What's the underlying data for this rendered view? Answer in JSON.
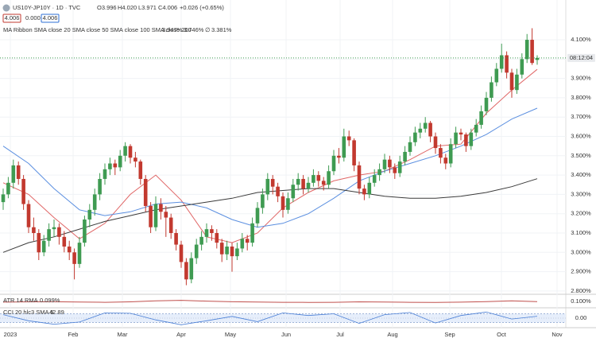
{
  "header": {
    "symbol": "US10Y-JP10Y · 1D · TVC",
    "ohlc": [
      "O3.996",
      "H4.020",
      "L3.971",
      "C4.006",
      "+0.026 (+0.65%)"
    ],
    "bid": "4.006",
    "spread": "0.000",
    "ask": "4.006",
    "countdown": "08:12:04"
  },
  "chart_data": {
    "type": "candlestick",
    "up_color": "#3f9b52",
    "down_color": "#c2392f",
    "ylim": [
      2.783,
      4.306
    ],
    "yticks": [
      {
        "value": 2.8,
        "label": "2.800%"
      },
      {
        "value": 2.9,
        "label": "2.900%"
      },
      {
        "value": 3.0,
        "label": "3.000%"
      },
      {
        "value": 3.1,
        "label": "3.100%"
      },
      {
        "value": 3.2,
        "label": "3.200%"
      },
      {
        "value": 3.3,
        "label": "3.300%"
      },
      {
        "value": 3.4,
        "label": "3.400%"
      },
      {
        "value": 3.5,
        "label": "3.500%"
      },
      {
        "value": 3.6,
        "label": "3.600%"
      },
      {
        "value": 3.7,
        "label": "3.700%"
      },
      {
        "value": 3.8,
        "label": "3.800%"
      },
      {
        "value": 3.9,
        "label": "3.900%"
      },
      {
        "value": 4.0,
        "label": "4.000%"
      },
      {
        "value": 4.1,
        "label": "4.100%"
      }
    ],
    "grid": true,
    "x_labels": [
      "2023",
      "Feb",
      "Mar",
      "Apr",
      "May",
      "Jun",
      "Jul",
      "Aug",
      "Sep",
      "Oct",
      "Nov"
    ],
    "candles": [
      [
        3.26,
        3.33,
        3.22,
        3.3
      ],
      [
        3.3,
        3.39,
        3.28,
        3.36
      ],
      [
        3.36,
        3.48,
        3.33,
        3.45
      ],
      [
        3.45,
        3.47,
        3.35,
        3.38
      ],
      [
        3.38,
        3.4,
        3.22,
        3.25
      ],
      [
        3.25,
        3.27,
        3.1,
        3.13
      ],
      [
        3.13,
        3.18,
        3.06,
        3.1
      ],
      [
        3.1,
        3.12,
        2.96,
        3.0
      ],
      [
        3.0,
        3.09,
        2.98,
        3.06
      ],
      [
        3.06,
        3.15,
        3.03,
        3.12
      ],
      [
        3.12,
        3.17,
        3.08,
        3.13
      ],
      [
        3.13,
        3.15,
        3.04,
        3.08
      ],
      [
        3.08,
        3.11,
        3.0,
        3.03
      ],
      [
        3.03,
        3.06,
        2.96,
        3.0
      ],
      [
        3.0,
        3.02,
        2.86,
        2.94
      ],
      [
        2.94,
        3.08,
        2.92,
        3.05
      ],
      [
        3.05,
        3.19,
        3.03,
        3.17
      ],
      [
        3.17,
        3.25,
        3.13,
        3.22
      ],
      [
        3.22,
        3.33,
        3.19,
        3.3
      ],
      [
        3.3,
        3.41,
        3.27,
        3.38
      ],
      [
        3.38,
        3.46,
        3.35,
        3.43
      ],
      [
        3.43,
        3.49,
        3.4,
        3.46
      ],
      [
        3.46,
        3.48,
        3.4,
        3.44
      ],
      [
        3.44,
        3.53,
        3.42,
        3.5
      ],
      [
        3.5,
        3.57,
        3.47,
        3.55
      ],
      [
        3.55,
        3.56,
        3.46,
        3.49
      ],
      [
        3.49,
        3.52,
        3.44,
        3.47
      ],
      [
        3.47,
        3.48,
        3.35,
        3.38
      ],
      [
        3.38,
        3.4,
        3.21,
        3.24
      ],
      [
        3.24,
        3.26,
        3.1,
        3.13
      ],
      [
        3.13,
        3.29,
        3.11,
        3.25
      ],
      [
        3.25,
        3.28,
        3.17,
        3.21
      ],
      [
        3.21,
        3.24,
        3.08,
        3.18
      ],
      [
        3.18,
        3.2,
        3.07,
        3.1
      ],
      [
        3.1,
        3.12,
        3.01,
        3.04
      ],
      [
        3.04,
        3.06,
        2.92,
        2.95
      ],
      [
        2.95,
        2.97,
        2.83,
        2.86
      ],
      [
        2.86,
        3.0,
        2.84,
        2.97
      ],
      [
        2.97,
        3.07,
        2.94,
        3.04
      ],
      [
        3.04,
        3.11,
        3.01,
        3.08
      ],
      [
        3.08,
        3.15,
        3.05,
        3.12
      ],
      [
        3.12,
        3.14,
        3.06,
        3.1
      ],
      [
        3.1,
        3.12,
        3.02,
        3.05
      ],
      [
        3.05,
        3.07,
        2.95,
        2.99
      ],
      [
        2.99,
        3.06,
        2.96,
        3.03
      ],
      [
        3.03,
        3.05,
        2.9,
        2.98
      ],
      [
        2.98,
        3.05,
        2.96,
        3.02
      ],
      [
        3.02,
        3.1,
        3.0,
        3.07
      ],
      [
        3.07,
        3.09,
        3.01,
        3.05
      ],
      [
        3.05,
        3.18,
        3.03,
        3.15
      ],
      [
        3.15,
        3.26,
        3.13,
        3.23
      ],
      [
        3.23,
        3.33,
        3.2,
        3.3
      ],
      [
        3.3,
        3.41,
        3.27,
        3.38
      ],
      [
        3.38,
        3.4,
        3.3,
        3.34
      ],
      [
        3.34,
        3.36,
        3.26,
        3.29
      ],
      [
        3.29,
        3.31,
        3.18,
        3.22
      ],
      [
        3.22,
        3.31,
        3.2,
        3.28
      ],
      [
        3.28,
        3.38,
        3.26,
        3.35
      ],
      [
        3.35,
        3.41,
        3.32,
        3.38
      ],
      [
        3.38,
        3.4,
        3.3,
        3.33
      ],
      [
        3.33,
        3.39,
        3.31,
        3.36
      ],
      [
        3.36,
        3.43,
        3.34,
        3.4
      ],
      [
        3.4,
        3.42,
        3.34,
        3.37
      ],
      [
        3.37,
        3.39,
        3.32,
        3.35
      ],
      [
        3.35,
        3.45,
        3.33,
        3.42
      ],
      [
        3.42,
        3.53,
        3.4,
        3.5
      ],
      [
        3.5,
        3.54,
        3.46,
        3.49
      ],
      [
        3.49,
        3.64,
        3.47,
        3.6
      ],
      [
        3.6,
        3.63,
        3.55,
        3.58
      ],
      [
        3.58,
        3.59,
        3.42,
        3.45
      ],
      [
        3.45,
        3.47,
        3.3,
        3.33
      ],
      [
        3.33,
        3.35,
        3.27,
        3.3
      ],
      [
        3.3,
        3.39,
        3.28,
        3.36
      ],
      [
        3.36,
        3.43,
        3.34,
        3.4
      ],
      [
        3.4,
        3.46,
        3.37,
        3.43
      ],
      [
        3.43,
        3.51,
        3.41,
        3.48
      ],
      [
        3.48,
        3.5,
        3.41,
        3.44
      ],
      [
        3.44,
        3.46,
        3.38,
        3.41
      ],
      [
        3.41,
        3.5,
        3.39,
        3.47
      ],
      [
        3.47,
        3.55,
        3.45,
        3.52
      ],
      [
        3.52,
        3.6,
        3.5,
        3.57
      ],
      [
        3.57,
        3.65,
        3.55,
        3.62
      ],
      [
        3.62,
        3.67,
        3.59,
        3.64
      ],
      [
        3.64,
        3.7,
        3.62,
        3.67
      ],
      [
        3.67,
        3.68,
        3.57,
        3.6
      ],
      [
        3.6,
        3.62,
        3.51,
        3.54
      ],
      [
        3.54,
        3.56,
        3.46,
        3.49
      ],
      [
        3.49,
        3.51,
        3.43,
        3.46
      ],
      [
        3.46,
        3.59,
        3.44,
        3.56
      ],
      [
        3.56,
        3.65,
        3.54,
        3.62
      ],
      [
        3.62,
        3.64,
        3.58,
        3.61
      ],
      [
        3.61,
        3.62,
        3.52,
        3.55
      ],
      [
        3.55,
        3.64,
        3.53,
        3.62
      ],
      [
        3.62,
        3.69,
        3.6,
        3.66
      ],
      [
        3.66,
        3.76,
        3.64,
        3.73
      ],
      [
        3.73,
        3.83,
        3.71,
        3.8
      ],
      [
        3.8,
        3.91,
        3.78,
        3.88
      ],
      [
        3.88,
        3.98,
        3.86,
        3.95
      ],
      [
        3.95,
        4.08,
        3.93,
        4.02
      ],
      [
        4.02,
        4.04,
        3.9,
        3.93
      ],
      [
        3.93,
        3.95,
        3.8,
        3.84
      ],
      [
        3.84,
        3.95,
        3.82,
        3.92
      ],
      [
        3.92,
        4.03,
        3.9,
        4.0
      ],
      [
        4.0,
        4.13,
        3.98,
        4.1
      ],
      [
        4.1,
        4.16,
        3.97,
        3.98
      ],
      [
        3.996,
        4.02,
        3.971,
        4.006
      ]
    ],
    "indicator": "MA Ribbon SMA close 20 SMA close 50 SMA close 100 SMA close 200",
    "series": [
      {
        "label": "3.947%",
        "color": "#e06666",
        "values": [
          3.36,
          3.3,
          3.18,
          3.07,
          3.15,
          3.3,
          3.4,
          3.27,
          3.08,
          3.05,
          3.1,
          3.23,
          3.31,
          3.37,
          3.4,
          3.42,
          3.48,
          3.55,
          3.56,
          3.72,
          3.84,
          3.947
        ]
      },
      {
        "label": "3.746%",
        "color": "#5b8fe0",
        "values": [
          3.55,
          3.46,
          3.33,
          3.22,
          3.19,
          3.21,
          3.25,
          3.26,
          3.23,
          3.17,
          3.13,
          3.15,
          3.2,
          3.28,
          3.37,
          3.42,
          3.46,
          3.5,
          3.55,
          3.61,
          3.69,
          3.746
        ]
      },
      {
        "label": "∅",
        "color": "#555555"
      },
      {
        "label": "3.381%",
        "color": "#3a3a3a",
        "values": [
          3.0,
          3.05,
          3.08,
          3.12,
          3.16,
          3.19,
          3.22,
          3.24,
          3.26,
          3.28,
          3.31,
          3.32,
          3.33,
          3.33,
          3.31,
          3.29,
          3.28,
          3.28,
          3.29,
          3.31,
          3.34,
          3.381
        ]
      }
    ]
  },
  "atr": {
    "title": "ATR 14 RMA",
    "label": "0.099%",
    "color": "#c0504d",
    "ylim": [
      0.06,
      0.14
    ],
    "yticks": [
      {
        "value": 0.1,
        "label": "0.100%"
      }
    ],
    "values": [
      0.095,
      0.097,
      0.098,
      0.096,
      0.094,
      0.097,
      0.104,
      0.108,
      0.102,
      0.098,
      0.096,
      0.094,
      0.093,
      0.094,
      0.097,
      0.096,
      0.094,
      0.093,
      0.095,
      0.099,
      0.104,
      0.099
    ]
  },
  "cci": {
    "title": "CCI 20 hlc3 SMA 5",
    "label": "42.89",
    "color": "#4a7fd6",
    "ylim": [
      -200,
      200
    ],
    "yticks": [
      {
        "value": 0,
        "label": "0.00"
      }
    ],
    "bands": [
      100,
      -100
    ],
    "values": [
      80,
      -60,
      -140,
      -90,
      120,
      110,
      -40,
      -150,
      -60,
      40,
      -80,
      120,
      60,
      100,
      -120,
      80,
      130,
      -110,
      60,
      140,
      -20,
      42.89
    ]
  }
}
